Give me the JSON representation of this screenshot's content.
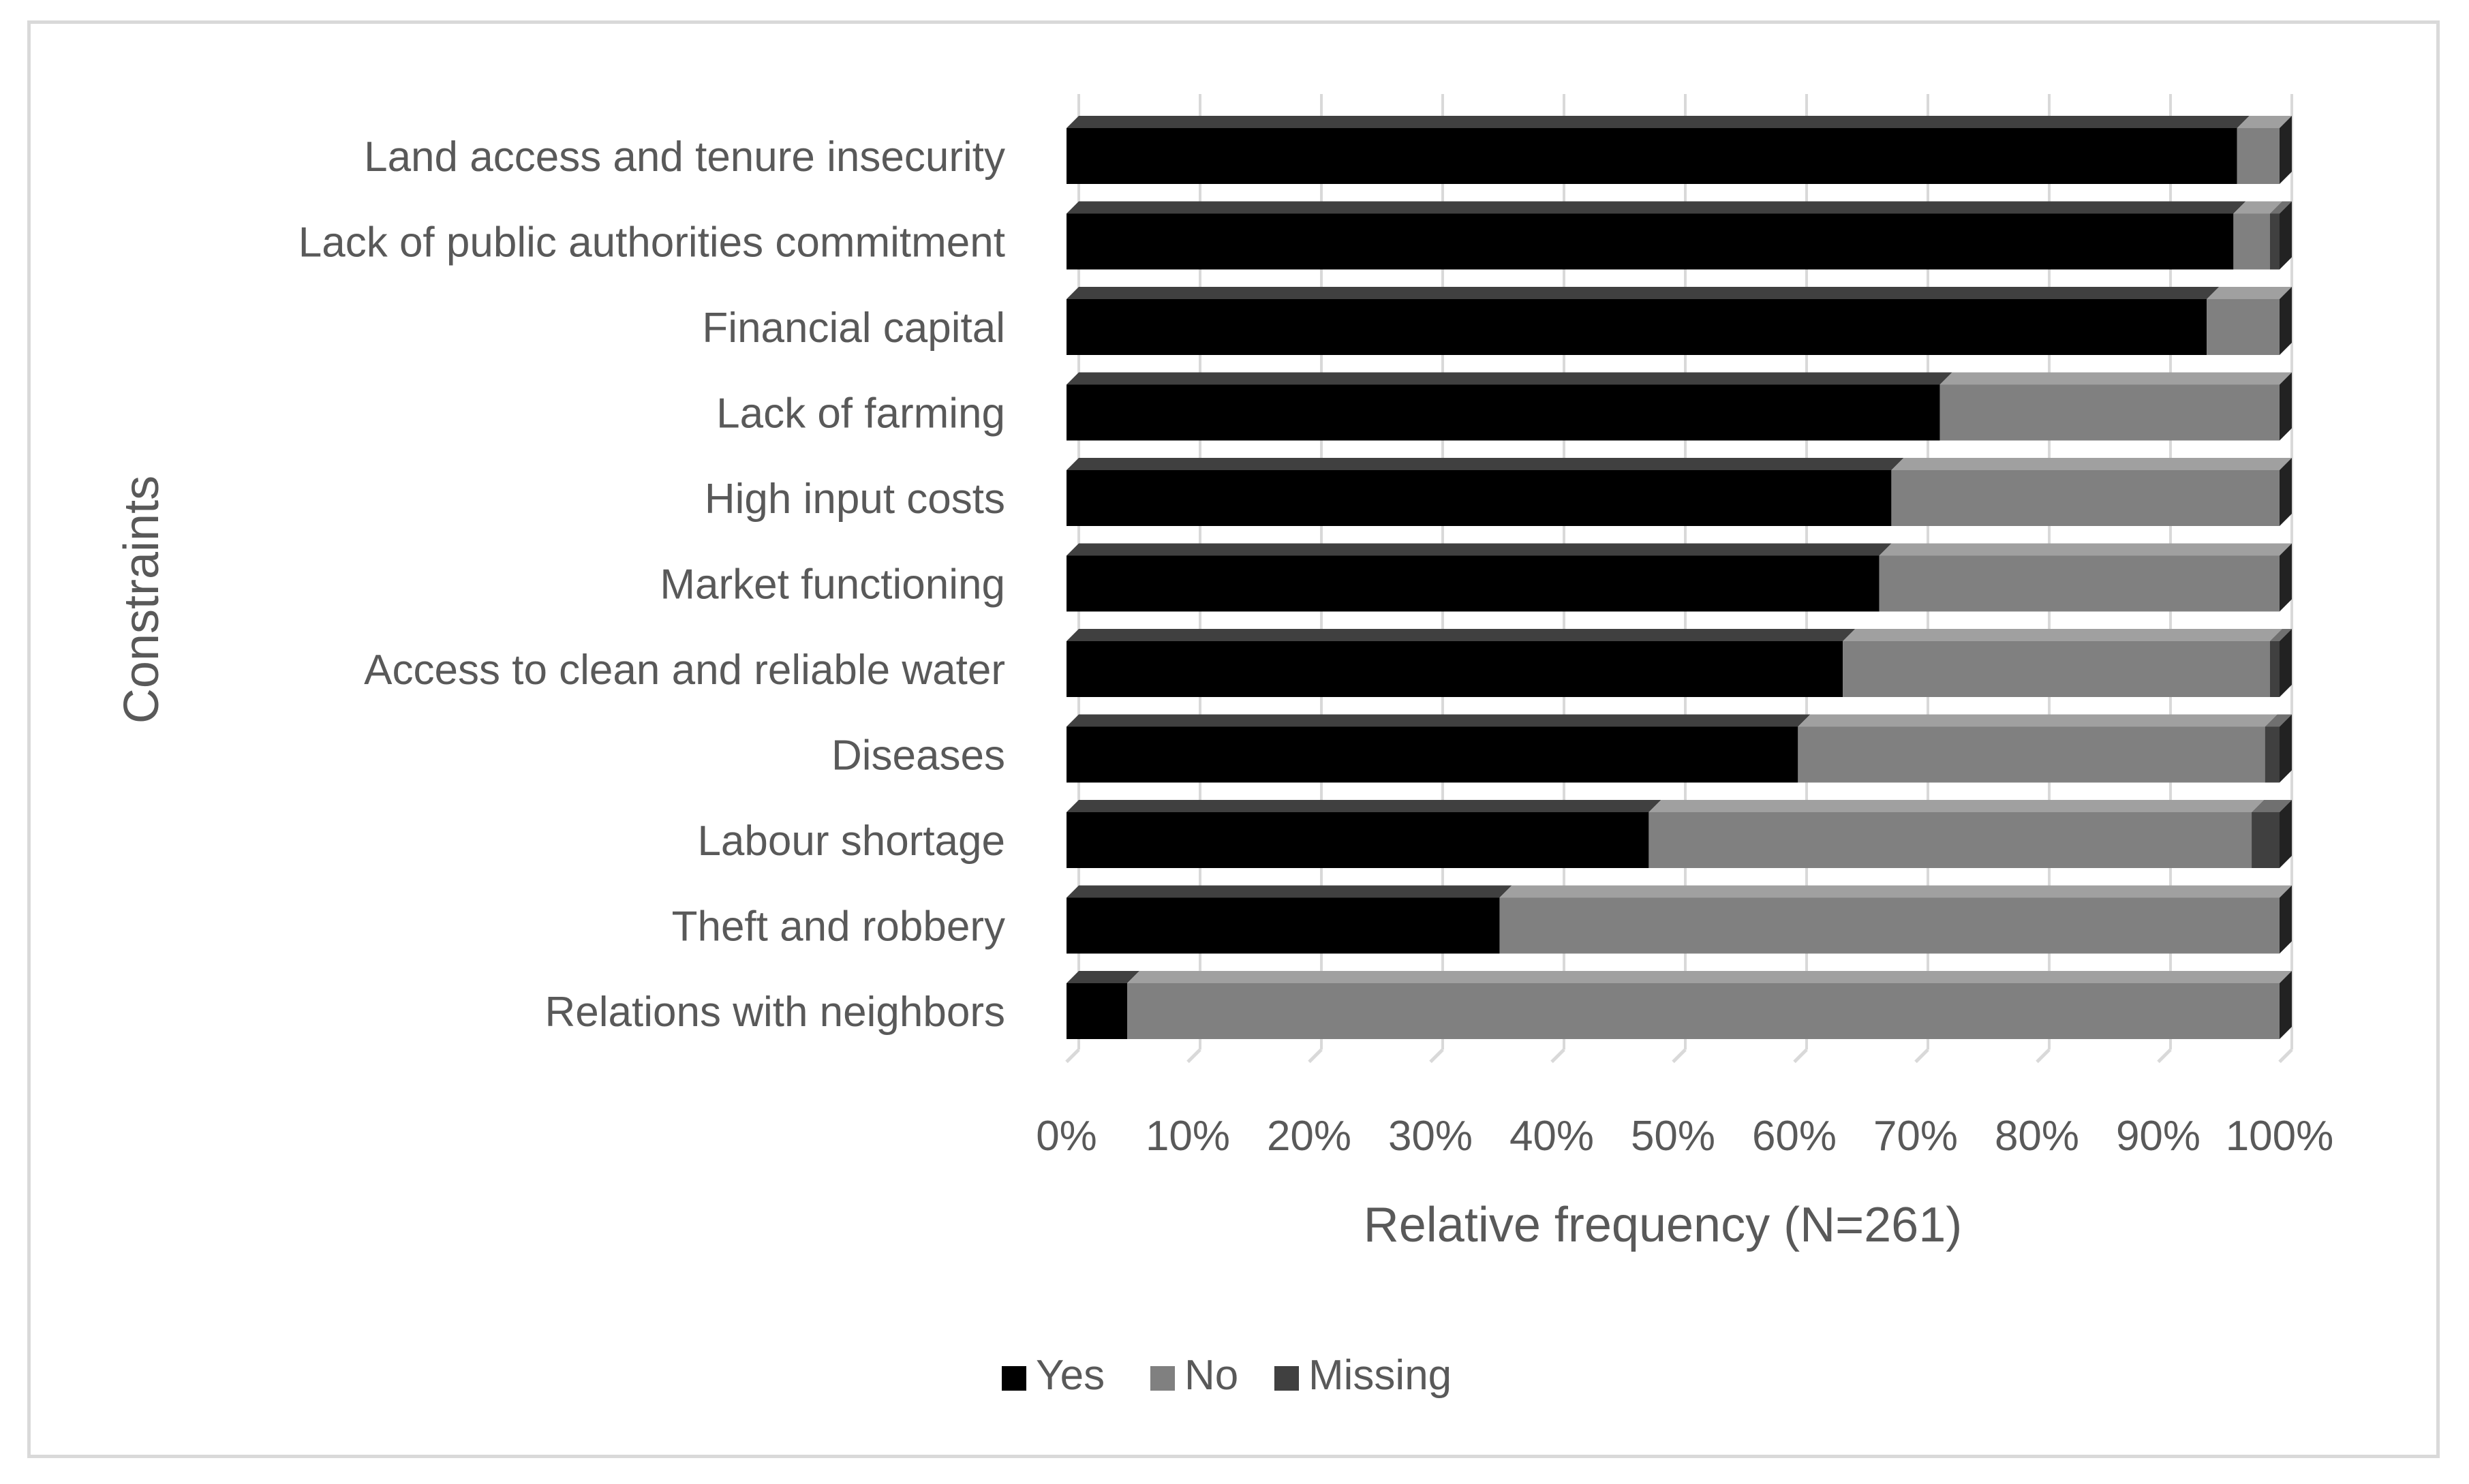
{
  "chart_data": {
    "type": "bar",
    "orientation": "horizontal",
    "stacked": "100%",
    "title": "",
    "xlabel": "Relative frequency (N=261)",
    "ylabel": "Constraints",
    "xlim": [
      0,
      100
    ],
    "x_ticks": [
      "0%",
      "10%",
      "20%",
      "30%",
      "40%",
      "50%",
      "60%",
      "70%",
      "80%",
      "90%",
      "100%"
    ],
    "grid": true,
    "legend_position": "bottom",
    "categories": [
      "Land access and tenure insecurity",
      "Lack of public authorities commitment",
      "Financial capital",
      "Lack of farming",
      "High input costs",
      "Market functioning",
      "Access to clean and reliable water",
      "Diseases",
      "Labour shortage",
      "Theft and robbery",
      "Relations with neighbors"
    ],
    "series": [
      {
        "name": "Yes",
        "color": "#000000",
        "values": [
          96.5,
          96.2,
          94,
          72,
          68,
          67,
          64,
          60.3,
          48,
          35.7,
          5
        ]
      },
      {
        "name": "No",
        "color": "#808080",
        "values": [
          3.5,
          3.0,
          6,
          28,
          32,
          33,
          35.2,
          38.5,
          49.7,
          64.3,
          95
        ]
      },
      {
        "name": "Missing",
        "color": "#404040",
        "values": [
          0,
          0.8,
          0,
          0,
          0,
          0,
          0.8,
          1.2,
          2.3,
          0,
          0
        ]
      }
    ]
  }
}
